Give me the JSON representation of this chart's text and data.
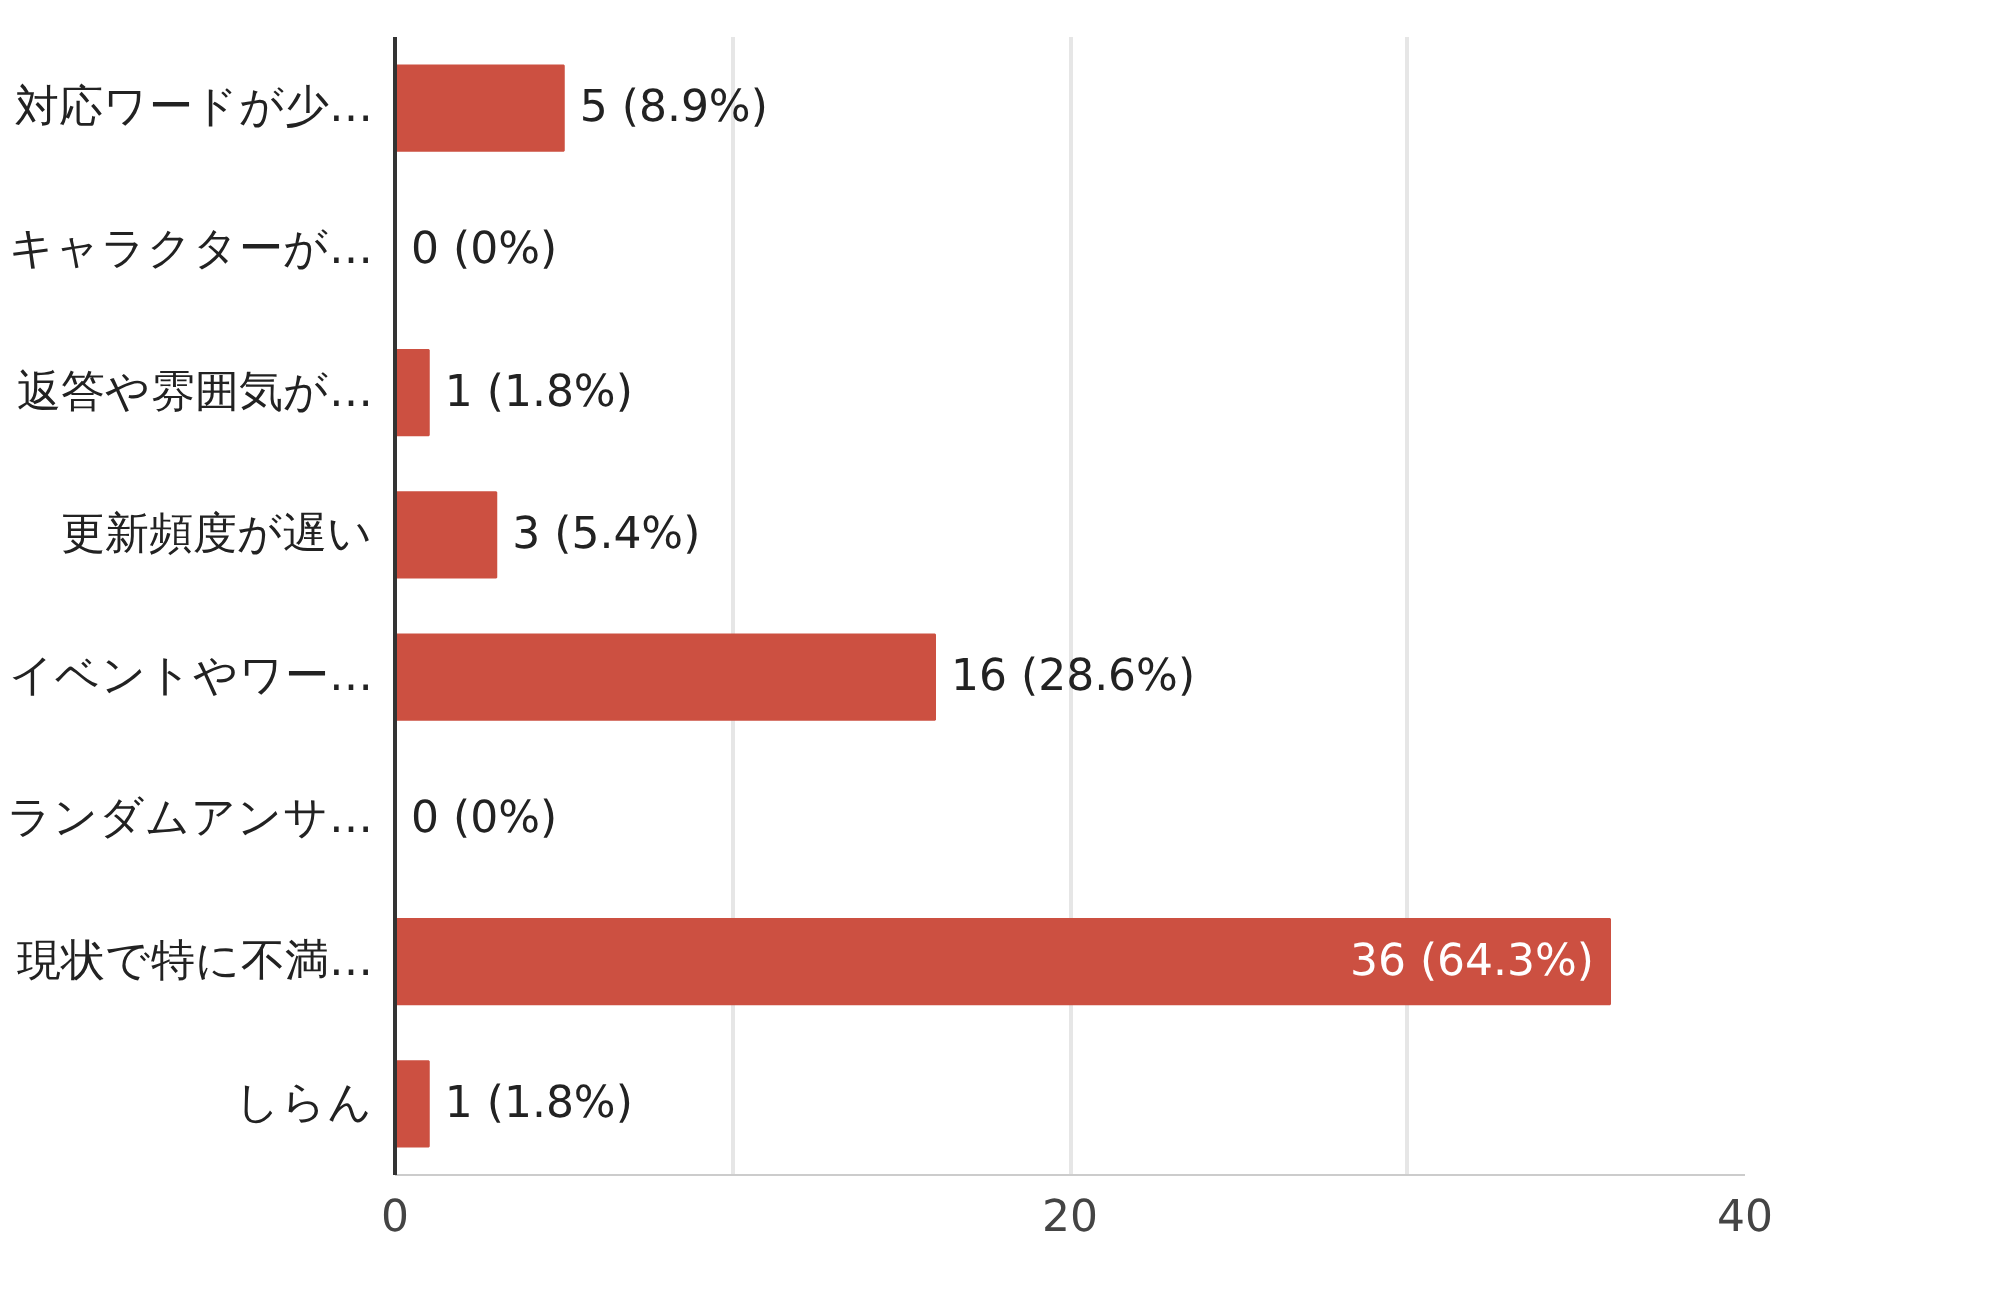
{
  "chart_data": {
    "type": "bar",
    "orientation": "horizontal",
    "categories": [
      "対応ワードが少…",
      "キャラクターが…",
      "返答や雰囲気が…",
      "更新頻度が遅い",
      "イベントやワー…",
      "ランダムアンサ…",
      "現状で特に不満…",
      "しらん"
    ],
    "values": [
      5,
      0,
      1,
      3,
      16,
      0,
      36,
      1
    ],
    "value_labels": [
      "5 (8.9%)",
      "0 (0%)",
      "1 (1.8%)",
      "3 (5.4%)",
      "16 (28.6%)",
      "0 (0%)",
      "36 (64.3%)",
      "1 (1.8%)"
    ],
    "color": "#cc5041",
    "xlim": [
      0,
      40
    ],
    "xticks": [
      0,
      {
        "value": 10,
        "label": null
      },
      20,
      {
        "value": 30,
        "label": null
      },
      40
    ],
    "grid": "x",
    "legend": false
  }
}
